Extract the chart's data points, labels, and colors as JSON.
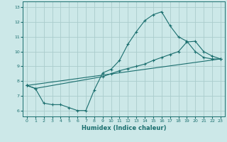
{
  "xlabel": "Humidex (Indice chaleur)",
  "bg_color": "#cce8e8",
  "grid_color": "#aacccc",
  "line_color": "#1a6e6e",
  "xlim": [
    -0.5,
    23.5
  ],
  "ylim": [
    5.6,
    13.4
  ],
  "xticks": [
    0,
    1,
    2,
    3,
    4,
    5,
    6,
    7,
    8,
    9,
    10,
    11,
    12,
    13,
    14,
    15,
    16,
    17,
    18,
    19,
    20,
    21,
    22,
    23
  ],
  "yticks": [
    6,
    7,
    8,
    9,
    10,
    11,
    12,
    13
  ],
  "line1_x": [
    0,
    1,
    2,
    3,
    4,
    5,
    6,
    7,
    8,
    9,
    10,
    11,
    12,
    13,
    14,
    15,
    16,
    17,
    18,
    19,
    20,
    21,
    22,
    23
  ],
  "line1_y": [
    7.7,
    7.5,
    6.5,
    6.4,
    6.4,
    6.2,
    6.0,
    6.0,
    7.4,
    8.55,
    8.8,
    9.4,
    10.5,
    11.35,
    12.1,
    12.5,
    12.7,
    11.75,
    11.0,
    10.7,
    10.0,
    9.6,
    9.5,
    9.5
  ],
  "line2_x": [
    0,
    1,
    9,
    10,
    11,
    12,
    13,
    14,
    15,
    16,
    17,
    18,
    19,
    20,
    21,
    22,
    23
  ],
  "line2_y": [
    7.7,
    7.5,
    8.3,
    8.5,
    8.7,
    8.85,
    9.0,
    9.15,
    9.4,
    9.6,
    9.8,
    10.0,
    10.65,
    10.7,
    10.0,
    9.7,
    9.5
  ],
  "line3_x": [
    0,
    23
  ],
  "line3_y": [
    7.7,
    9.5
  ]
}
